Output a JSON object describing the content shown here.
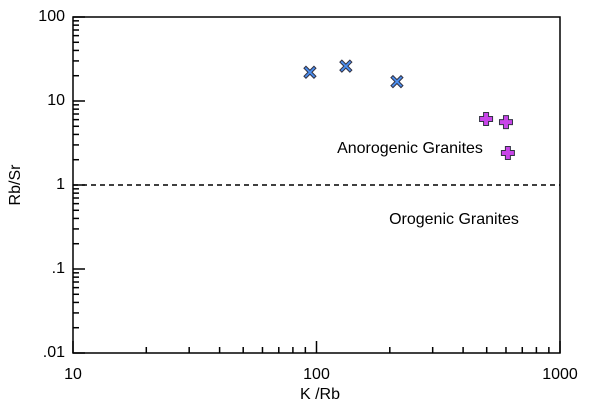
{
  "chart_data": {
    "type": "scatter",
    "x_label": "K /Rb",
    "y_label": "Rb/Sr",
    "xscale": "log",
    "yscale": "log",
    "xlim": [
      10,
      1000
    ],
    "ylim": [
      0.01,
      100
    ],
    "xticks": [
      10,
      100,
      1000
    ],
    "yticks": [
      {
        "value": 0.01,
        "label": ".01"
      },
      {
        "value": 0.1,
        "label": ".1"
      },
      1,
      10,
      100
    ],
    "minor_ticks": true,
    "hline": 1,
    "annotations": [
      "Anorogenic Granites",
      "Orogenic Granites"
    ],
    "series": [
      {
        "marker": "x",
        "color": "#4a8ef0",
        "x": [
          94,
          132,
          214
        ],
        "values": [
          22,
          26,
          17
        ]
      },
      {
        "marker": "plus",
        "color": "#c845e8",
        "x": [
          497,
          600,
          611
        ],
        "values": [
          6.1,
          5.6,
          2.4
        ]
      }
    ]
  }
}
